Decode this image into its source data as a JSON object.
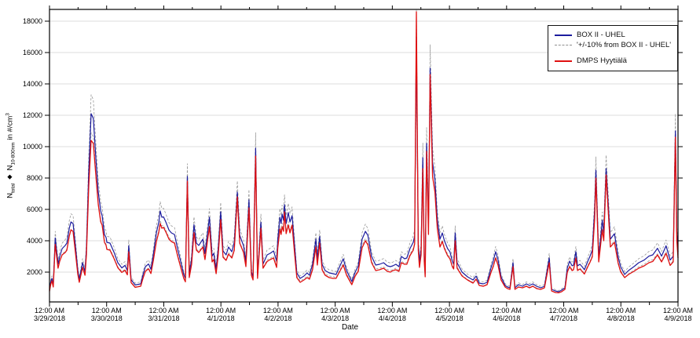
{
  "chart_data": {
    "type": "line",
    "xlabel": "Date",
    "ylabel_parts": {
      "n1": "N",
      "n1_sub": "total",
      "separator": "◆",
      "n2": "N",
      "n2_sub": "10-800nm",
      "unit": "in #/cm",
      "unit_sup": "3"
    },
    "x_axis": {
      "tick_time_label": "12:00 AM",
      "tick_dates": [
        "3/29/2018",
        "3/30/2018",
        "3/31/2018",
        "4/1/2018",
        "4/2/2018",
        "4/3/2018",
        "4/4/2018",
        "4/5/2018",
        "4/6/2018",
        "4/7/2018",
        "4/8/2018",
        "4/9/2018"
      ],
      "hours_per_day": 24,
      "xlim_hours": [
        0,
        264
      ],
      "minor_tick_every_hours": 12
    },
    "y_axis": {
      "ticks": [
        2000,
        4000,
        6000,
        8000,
        10000,
        12000,
        14000,
        16000,
        18000
      ],
      "ylim": [
        100,
        18750
      ],
      "grid": "horizontal-only"
    },
    "legend": [
      {
        "label": "BOX II - UHEL",
        "color": "#1C1C9E",
        "style": "solid"
      },
      {
        "label": "'+/-10% from BOX II - UHEL'",
        "color": "#8f8f8f",
        "style": "dashed"
      },
      {
        "label": "DMPS Hyytiälä",
        "color": "#E01010",
        "style": "solid"
      }
    ],
    "band": {
      "derived_from": "BOX II - UHEL",
      "percent": 10,
      "color": "#999999"
    },
    "series_names": [
      "BOX II - UHEL",
      "DMPS Hyytiala"
    ],
    "points_format": [
      "hours_since_3_29_2018_00_00",
      "box2_uhel",
      "dmps_hyytiala"
    ],
    "points": [
      [
        0,
        850,
        780
      ],
      [
        0.5,
        1350,
        1200
      ],
      [
        1,
        1600,
        1450
      ],
      [
        1.6,
        1200,
        1050
      ],
      [
        2.4,
        4180,
        3770
      ],
      [
        3.6,
        2520,
        2250
      ],
      [
        4.3,
        3000,
        2700
      ],
      [
        5.3,
        3500,
        3100
      ],
      [
        6.6,
        3700,
        3250
      ],
      [
        7.3,
        3850,
        3400
      ],
      [
        8.3,
        4800,
        4300
      ],
      [
        9,
        5200,
        4700
      ],
      [
        9.9,
        5100,
        4600
      ],
      [
        10.9,
        3680,
        3250
      ],
      [
        11.9,
        2100,
        1850
      ],
      [
        12.5,
        1520,
        1350
      ],
      [
        13.9,
        2600,
        2300
      ],
      [
        14.9,
        2020,
        1800
      ],
      [
        15.5,
        3500,
        3100
      ],
      [
        16.5,
        8500,
        7500
      ],
      [
        17.5,
        12100,
        10400
      ],
      [
        18.4,
        11800,
        10200
      ],
      [
        19.5,
        9200,
        8100
      ],
      [
        20.5,
        7100,
        6300
      ],
      [
        21.5,
        5900,
        5200
      ],
      [
        22.1,
        5600,
        5000
      ],
      [
        23.1,
        4400,
        3900
      ],
      [
        23.8,
        4200,
        3700
      ],
      [
        24.1,
        3900,
        3450
      ],
      [
        25.4,
        3850,
        3400
      ],
      [
        27.1,
        3270,
        2870
      ],
      [
        28.7,
        2600,
        2280
      ],
      [
        30.4,
        2270,
        1980
      ],
      [
        31.7,
        2430,
        2120
      ],
      [
        32.7,
        2100,
        1830
      ],
      [
        33.3,
        3680,
        3300
      ],
      [
        34.3,
        1520,
        1330
      ],
      [
        36,
        1180,
        1030
      ],
      [
        38.3,
        1250,
        1100
      ],
      [
        39.3,
        1850,
        1620
      ],
      [
        40.3,
        2350,
        2060
      ],
      [
        41.6,
        2520,
        2210
      ],
      [
        42.6,
        2180,
        1910
      ],
      [
        43.6,
        3100,
        2720
      ],
      [
        44.9,
        4520,
        3960
      ],
      [
        45.9,
        5180,
        4540
      ],
      [
        46.5,
        5900,
        5100
      ],
      [
        47.2,
        5500,
        4800
      ],
      [
        47.9,
        5520,
        4850
      ],
      [
        48.9,
        5180,
        4550
      ],
      [
        50.2,
        4680,
        4100
      ],
      [
        51.2,
        4500,
        3950
      ],
      [
        52.5,
        4400,
        3850
      ],
      [
        53.8,
        3520,
        3050
      ],
      [
        55.1,
        2680,
        2300
      ],
      [
        56.4,
        1850,
        1600
      ],
      [
        57.1,
        1600,
        1380
      ],
      [
        57.9,
        8100,
        7800
      ],
      [
        58.7,
        1850,
        1650
      ],
      [
        59.7,
        2850,
        2500
      ],
      [
        60.7,
        5020,
        4520
      ],
      [
        61.7,
        3850,
        3400
      ],
      [
        62.7,
        3700,
        3250
      ],
      [
        64.4,
        4100,
        3600
      ],
      [
        65.3,
        3180,
        2800
      ],
      [
        67.2,
        5500,
        4900
      ],
      [
        68.3,
        3020,
        2650
      ],
      [
        69,
        3200,
        2800
      ],
      [
        70,
        2180,
        1900
      ],
      [
        70.9,
        3520,
        3100
      ],
      [
        71.9,
        5850,
        5350
      ],
      [
        72.9,
        3350,
        2950
      ],
      [
        74.2,
        3100,
        2750
      ],
      [
        75.2,
        3600,
        3150
      ],
      [
        76.6,
        3300,
        2900
      ],
      [
        77.6,
        3900,
        3400
      ],
      [
        78.9,
        7100,
        6800
      ],
      [
        79.9,
        4350,
        3850
      ],
      [
        81.5,
        3680,
        3250
      ],
      [
        82.5,
        2680,
        2350
      ],
      [
        83.8,
        6600,
        6100
      ],
      [
        84.8,
        2020,
        1800
      ],
      [
        85.5,
        1700,
        1500
      ],
      [
        86.6,
        9900,
        9400
      ],
      [
        87.4,
        1800,
        1600
      ],
      [
        88.8,
        5180,
        4800
      ],
      [
        89.7,
        2520,
        2250
      ],
      [
        91.4,
        3100,
        2680
      ],
      [
        92.7,
        3200,
        2800
      ],
      [
        94.1,
        3350,
        2900
      ],
      [
        95.4,
        2700,
        2300
      ],
      [
        95.9,
        4100,
        3550
      ],
      [
        96.8,
        5500,
        4750
      ],
      [
        97.3,
        5100,
        4400
      ],
      [
        97.7,
        5700,
        4900
      ],
      [
        98.3,
        5300,
        4600
      ],
      [
        98.7,
        6300,
        5850
      ],
      [
        99.4,
        5100,
        4450
      ],
      [
        100.3,
        5800,
        5000
      ],
      [
        101,
        5200,
        4500
      ],
      [
        101.9,
        5600,
        5000
      ],
      [
        103,
        3600,
        3100
      ],
      [
        103.9,
        1950,
        1650
      ],
      [
        105.3,
        1600,
        1350
      ],
      [
        106.9,
        1750,
        1500
      ],
      [
        108.2,
        1950,
        1650
      ],
      [
        109.2,
        1800,
        1550
      ],
      [
        110.5,
        2500,
        2150
      ],
      [
        111.9,
        4100,
        3600
      ],
      [
        112.5,
        2850,
        2450
      ],
      [
        113.5,
        4270,
        3850
      ],
      [
        114.5,
        2500,
        2150
      ],
      [
        115.8,
        2100,
        1800
      ],
      [
        117.5,
        1950,
        1650
      ],
      [
        119.1,
        1900,
        1600
      ],
      [
        120.4,
        1850,
        1600
      ],
      [
        121.4,
        2200,
        1900
      ],
      [
        123.4,
        2850,
        2450
      ],
      [
        124.8,
        2100,
        1800
      ],
      [
        127,
        1400,
        1200
      ],
      [
        128.4,
        2000,
        1750
      ],
      [
        129.7,
        2400,
        2050
      ],
      [
        131.3,
        4100,
        3550
      ],
      [
        132.7,
        4600,
        4000
      ],
      [
        133.7,
        4350,
        3750
      ],
      [
        135.3,
        3000,
        2600
      ],
      [
        137,
        2450,
        2100
      ],
      [
        138.6,
        2500,
        2150
      ],
      [
        140.3,
        2600,
        2250
      ],
      [
        141.9,
        2400,
        2050
      ],
      [
        143.2,
        2350,
        2000
      ],
      [
        144.2,
        2400,
        2100
      ],
      [
        145.5,
        2500,
        2150
      ],
      [
        146.8,
        2350,
        2050
      ],
      [
        147.8,
        3000,
        2600
      ],
      [
        149.2,
        2850,
        2500
      ],
      [
        150.1,
        2900,
        2500
      ],
      [
        151.4,
        3500,
        3050
      ],
      [
        152.8,
        3900,
        3400
      ],
      [
        153.4,
        4300,
        3800
      ],
      [
        154.1,
        17000,
        18600
      ],
      [
        154.9,
        3800,
        3400
      ],
      [
        155.4,
        2600,
        2300
      ],
      [
        156.1,
        3500,
        3100
      ],
      [
        156.8,
        9300,
        8600
      ],
      [
        157.4,
        3000,
        2700
      ],
      [
        157.8,
        1900,
        1700
      ],
      [
        158.4,
        10200,
        9700
      ],
      [
        159.2,
        5000,
        4400
      ],
      [
        159.9,
        15000,
        14600
      ],
      [
        160.9,
        9000,
        8100
      ],
      [
        161.9,
        7900,
        7100
      ],
      [
        162.9,
        5400,
        4800
      ],
      [
        164,
        4100,
        3600
      ],
      [
        165,
        4500,
        3950
      ],
      [
        165.9,
        4000,
        3500
      ],
      [
        167.2,
        3500,
        3050
      ],
      [
        168.2,
        3300,
        2850
      ],
      [
        169.2,
        2700,
        2350
      ],
      [
        169.8,
        2500,
        2200
      ],
      [
        170.4,
        4500,
        4000
      ],
      [
        171.2,
        2600,
        2250
      ],
      [
        173.3,
        2000,
        1750
      ],
      [
        175.6,
        1700,
        1500
      ],
      [
        177.9,
        1500,
        1300
      ],
      [
        179.2,
        1750,
        1550
      ],
      [
        180.5,
        1300,
        1150
      ],
      [
        182.2,
        1250,
        1100
      ],
      [
        183.8,
        1350,
        1200
      ],
      [
        185.5,
        2300,
        2000
      ],
      [
        186.4,
        2700,
        2350
      ],
      [
        187.4,
        3300,
        2900
      ],
      [
        188.4,
        2800,
        2450
      ],
      [
        189.7,
        1700,
        1500
      ],
      [
        191.4,
        1150,
        1050
      ],
      [
        192.4,
        1050,
        950
      ],
      [
        193.4,
        1000,
        900
      ],
      [
        194.7,
        2600,
        2350
      ],
      [
        195.5,
        1000,
        900
      ],
      [
        197,
        1200,
        1050
      ],
      [
        198.7,
        1100,
        1000
      ],
      [
        200.3,
        1250,
        1100
      ],
      [
        201.6,
        1150,
        1000
      ],
      [
        203,
        1250,
        1100
      ],
      [
        204.6,
        1100,
        950
      ],
      [
        206.3,
        1000,
        900
      ],
      [
        207.9,
        1100,
        1000
      ],
      [
        209.9,
        2900,
        2600
      ],
      [
        210.9,
        900,
        800
      ],
      [
        212.5,
        800,
        700
      ],
      [
        213.8,
        750,
        680
      ],
      [
        215.1,
        850,
        750
      ],
      [
        216.5,
        1000,
        900
      ],
      [
        217.5,
        2270,
        2000
      ],
      [
        218.5,
        2700,
        2350
      ],
      [
        219.5,
        2400,
        2100
      ],
      [
        220.1,
        2450,
        2150
      ],
      [
        221.1,
        3300,
        2900
      ],
      [
        221.8,
        2400,
        2100
      ],
      [
        222.8,
        2500,
        2200
      ],
      [
        223.7,
        2350,
        2050
      ],
      [
        224.7,
        2150,
        1880
      ],
      [
        226.1,
        2700,
        2350
      ],
      [
        227,
        3000,
        2620
      ],
      [
        228,
        3400,
        2970
      ],
      [
        229,
        6000,
        5400
      ],
      [
        229.5,
        8500,
        8000
      ],
      [
        230.7,
        2950,
        2650
      ],
      [
        232.2,
        5300,
        4700
      ],
      [
        232.8,
        4500,
        4000
      ],
      [
        233.8,
        8600,
        8200
      ],
      [
        235.6,
        4100,
        3600
      ],
      [
        237.3,
        4450,
        3900
      ],
      [
        238.9,
        2950,
        2550
      ],
      [
        239.9,
        2350,
        2020
      ],
      [
        241.6,
        1850,
        1650
      ],
      [
        243.2,
        2100,
        1850
      ],
      [
        245.5,
        2350,
        2050
      ],
      [
        247.5,
        2600,
        2250
      ],
      [
        249.8,
        2770,
        2400
      ],
      [
        251.8,
        3020,
        2600
      ],
      [
        253.4,
        3100,
        2680
      ],
      [
        255.4,
        3520,
        3100
      ],
      [
        257.1,
        3020,
        2650
      ],
      [
        259,
        3680,
        3200
      ],
      [
        260.7,
        2770,
        2430
      ],
      [
        262,
        3020,
        2650
      ],
      [
        262.9,
        11000,
        10600
      ],
      [
        263.5,
        4500,
        4000
      ],
      [
        264,
        3300,
        2900
      ]
    ]
  }
}
